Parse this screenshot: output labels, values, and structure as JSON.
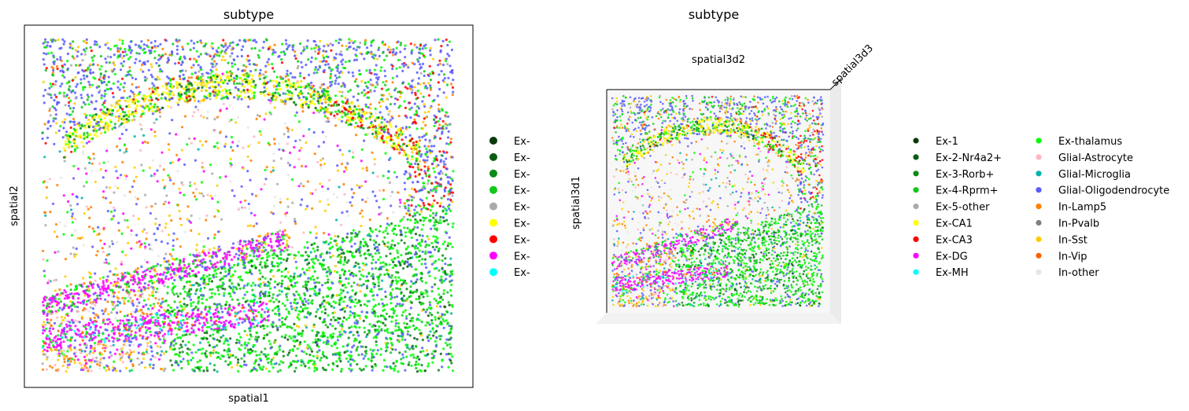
{
  "chart_data": [
    {
      "type": "scatter",
      "title": "subtype",
      "xlabel": "spatial1",
      "ylabel": "spatial2",
      "grid": false,
      "legend_placement": "right (truncated)",
      "legend_labels_visible": [
        "Ex-",
        "Ex-",
        "Ex-",
        "Ex-",
        "Ex-",
        "Ex-",
        "Ex-",
        "Ex-",
        "Ex-"
      ]
    },
    {
      "type": "scatter",
      "projection": "3d",
      "title": "subtype",
      "xlabel": "spatial3d2",
      "ylabel": "spatial3d1",
      "zlabel": "spatial3d3",
      "grid": false,
      "legend_placement": "right, two columns",
      "legend_labels": [
        "Ex-1",
        "Ex-2-Nr4a2+",
        "Ex-3-Rorb+",
        "Ex-4-Rprm+",
        "Ex-5-other",
        "Ex-CA1",
        "Ex-CA3",
        "Ex-DG",
        "Ex-MH",
        "Ex-thalamus",
        "Glial-Astrocyte",
        "Glial-Microglia",
        "Glial-Oligodendrocyte",
        "In-Lamp5",
        "In-Pvalb",
        "In-Sst",
        "In-Vip",
        "In-other"
      ]
    }
  ],
  "categories": [
    {
      "name": "Ex-1",
      "color": "#0a3a0a"
    },
    {
      "name": "Ex-2-Nr4a2+",
      "color": "#0a5c12"
    },
    {
      "name": "Ex-3-Rorb+",
      "color": "#0a8a16"
    },
    {
      "name": "Ex-4-Rprm+",
      "color": "#12c81a"
    },
    {
      "name": "Ex-5-other",
      "color": "#aaaaaa"
    },
    {
      "name": "Ex-CA1",
      "color": "#ffff00"
    },
    {
      "name": "Ex-CA3",
      "color": "#ff0000"
    },
    {
      "name": "Ex-DG",
      "color": "#ff00ff"
    },
    {
      "name": "Ex-MH",
      "color": "#00ffff"
    },
    {
      "name": "Ex-thalamus",
      "color": "#00ff00"
    },
    {
      "name": "Glial-Astrocyte",
      "color": "#ffb6c1"
    },
    {
      "name": "Glial-Microglia",
      "color": "#00b3aa"
    },
    {
      "name": "Glial-Oligodendrocyte",
      "color": "#5a5aff"
    },
    {
      "name": "In-Lamp5",
      "color": "#ff7f00"
    },
    {
      "name": "In-Pvalb",
      "color": "#808080"
    },
    {
      "name": "In-Sst",
      "color": "#ffcc00"
    },
    {
      "name": "In-Vip",
      "color": "#ff6000"
    },
    {
      "name": "In-other",
      "color": "#e6e6e6"
    }
  ]
}
